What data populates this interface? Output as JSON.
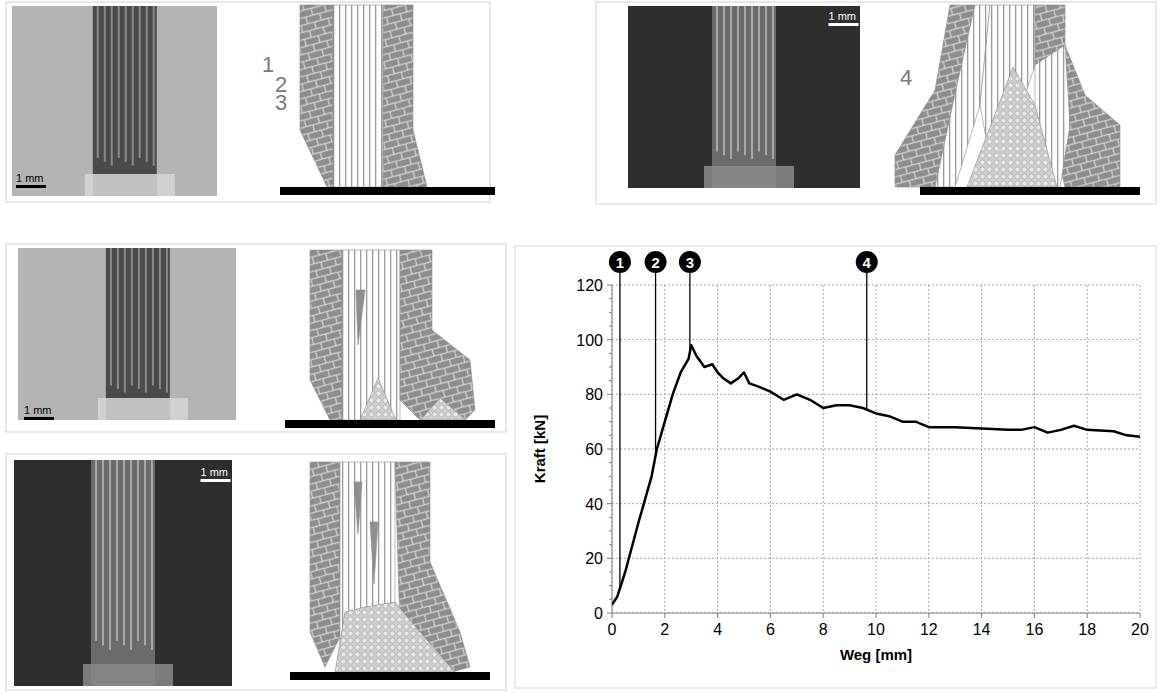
{
  "chart_data": {
    "type": "line",
    "x_label": "Weg [mm]",
    "y_label": "Kraft [kN]",
    "x": [
      0,
      0.2,
      0.5,
      1.0,
      1.5,
      1.7,
      2.0,
      2.3,
      2.6,
      2.9,
      3.0,
      3.2,
      3.5,
      3.8,
      4.0,
      4.2,
      4.5,
      4.8,
      5.0,
      5.2,
      5.5,
      6.0,
      6.5,
      7.0,
      7.5,
      8.0,
      8.5,
      9.0,
      9.5,
      10.0,
      10.5,
      11.0,
      11.5,
      12.0,
      13.0,
      14.0,
      15.0,
      15.5,
      16.0,
      16.5,
      17.0,
      17.5,
      18.0,
      19.0,
      19.5,
      20.0
    ],
    "values": [
      3,
      6,
      15,
      33,
      50,
      60,
      70,
      80,
      88,
      93,
      98,
      94,
      90,
      91,
      88,
      86,
      84,
      86,
      88,
      84,
      83,
      81,
      78,
      80,
      78,
      75,
      76,
      76,
      75,
      73,
      72,
      70,
      70,
      68,
      68,
      67.5,
      67,
      67,
      68,
      66,
      67,
      68.5,
      67,
      66.5,
      65,
      64.5
    ],
    "color": "#000000",
    "xlim": [
      0,
      20
    ],
    "ylim": [
      0,
      120
    ],
    "xticks": [
      0,
      2,
      4,
      6,
      8,
      10,
      12,
      14,
      16,
      18,
      20
    ],
    "yticks": [
      0,
      20,
      40,
      60,
      80,
      100,
      120
    ],
    "grid": true,
    "annotations": [
      {
        "label": "1",
        "x": 0.3
      },
      {
        "label": "2",
        "x": 1.65
      },
      {
        "label": "3",
        "x": 2.95
      },
      {
        "label": "4",
        "x": 9.65
      }
    ]
  },
  "panels": [
    {
      "label": "1",
      "scale": "1 mm"
    },
    {
      "label": "2",
      "scale": "1 mm"
    },
    {
      "label": "3",
      "scale": "1 mm"
    },
    {
      "label": "4",
      "scale": "1 mm"
    }
  ]
}
